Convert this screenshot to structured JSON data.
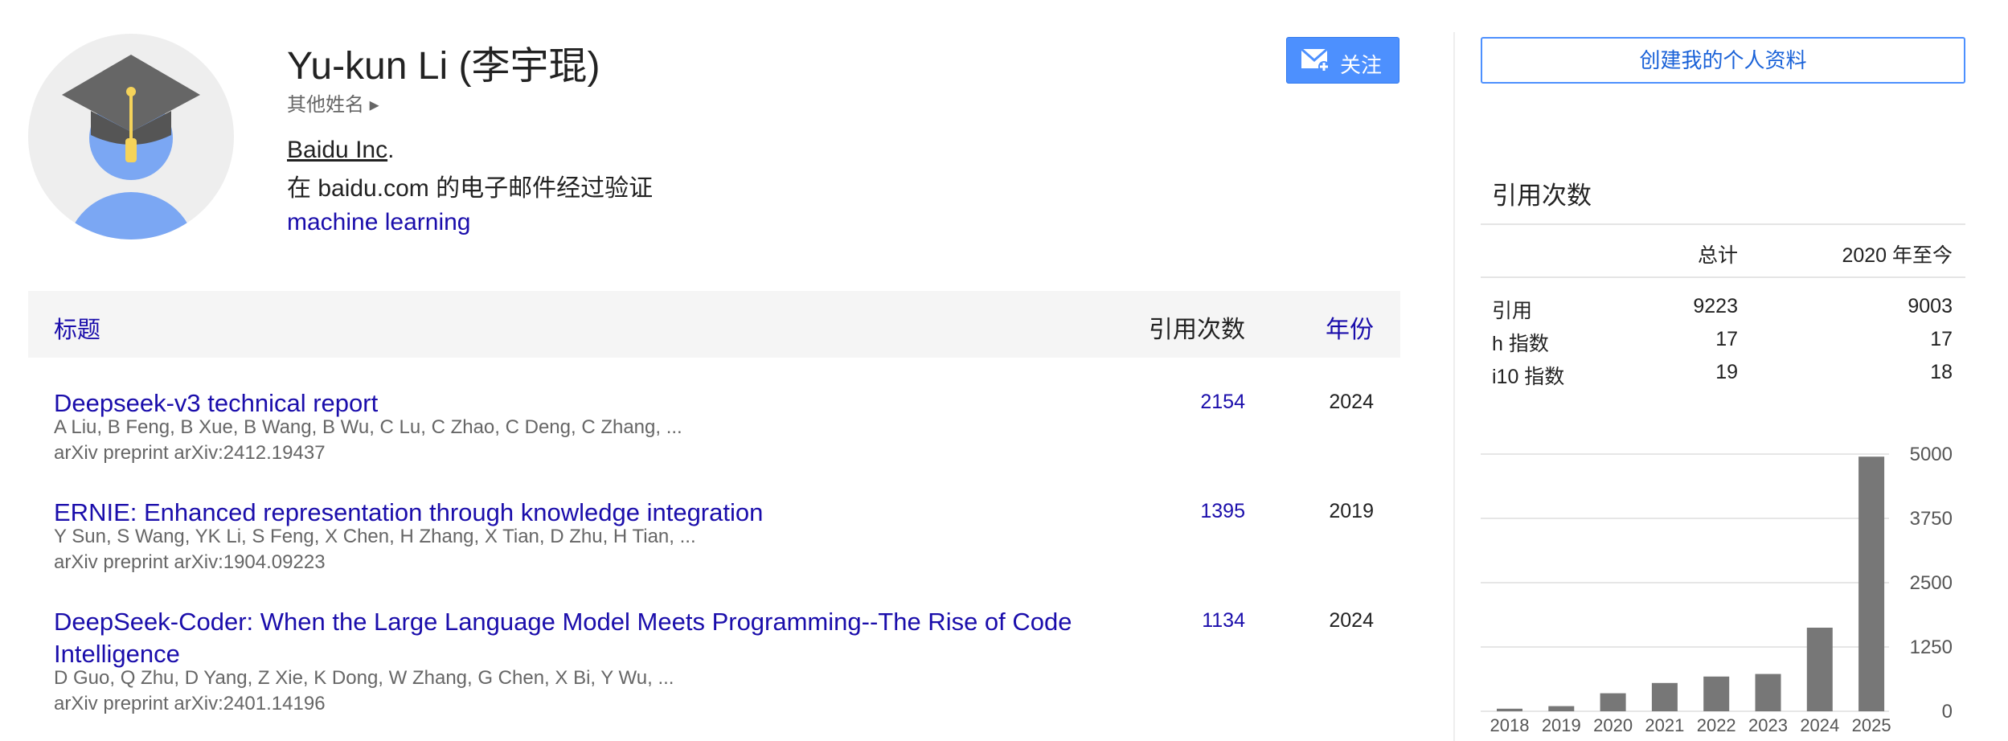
{
  "profile": {
    "name": "Yu-kun Li (李宇琨)",
    "other_names": "其他姓名",
    "affiliation": "Baidu Inc",
    "affiliation_punct": ".",
    "email": "在 baidu.com 的电子邮件经过验证",
    "interest": "machine learning"
  },
  "follow_button": "关注",
  "create_button": "创建我的个人资料",
  "table": {
    "headers": [
      "标题",
      "引用次数",
      "年份"
    ],
    "rows": [
      {
        "title": "Deepseek-v3 technical report",
        "authors": "A Liu, B Feng, B Xue, B Wang, B Wu, C Lu, C Zhao, C Deng, C Zhang, ...",
        "venue": "arXiv preprint arXiv:2412.19437",
        "citations": 2154,
        "year": 2024
      },
      {
        "title": "ERNIE: Enhanced representation through knowledge integration",
        "authors": "Y Sun, S Wang, YK Li, S Feng, X Chen, H Zhang, X Tian, D Zhu, H Tian, ...",
        "venue": "arXiv preprint arXiv:1904.09223",
        "citations": 1395,
        "year": 2019
      },
      {
        "title": "DeepSeek-Coder: When the Large Language Model Meets Programming--The Rise of Code Intelligence",
        "authors": "D Guo, Q Zhu, D Yang, Z Xie, K Dong, W Zhang, G Chen, X Bi, Y Wu, ...",
        "venue": "arXiv preprint arXiv:2401.14196",
        "citations": 1134,
        "year": 2024
      }
    ]
  },
  "citations": {
    "title": "引用次数",
    "headers": [
      "总计",
      "2020 年至今"
    ],
    "rows": [
      {
        "label": "引用",
        "total": 9223,
        "since": 9003
      },
      {
        "label": "h 指数",
        "total": 17,
        "since": 17
      },
      {
        "label": "i10 指数",
        "total": 19,
        "since": 18
      }
    ]
  },
  "chart_data": {
    "type": "bar",
    "categories": [
      "2018",
      "2019",
      "2020",
      "2021",
      "2022",
      "2023",
      "2024",
      "2025"
    ],
    "values": [
      50,
      100,
      350,
      550,
      675,
      725,
      1625,
      4950
    ],
    "color": "#777777",
    "ylim": [
      0,
      5000
    ],
    "yticks": [
      0,
      1250,
      2500,
      3750,
      5000
    ],
    "grid": true
  }
}
